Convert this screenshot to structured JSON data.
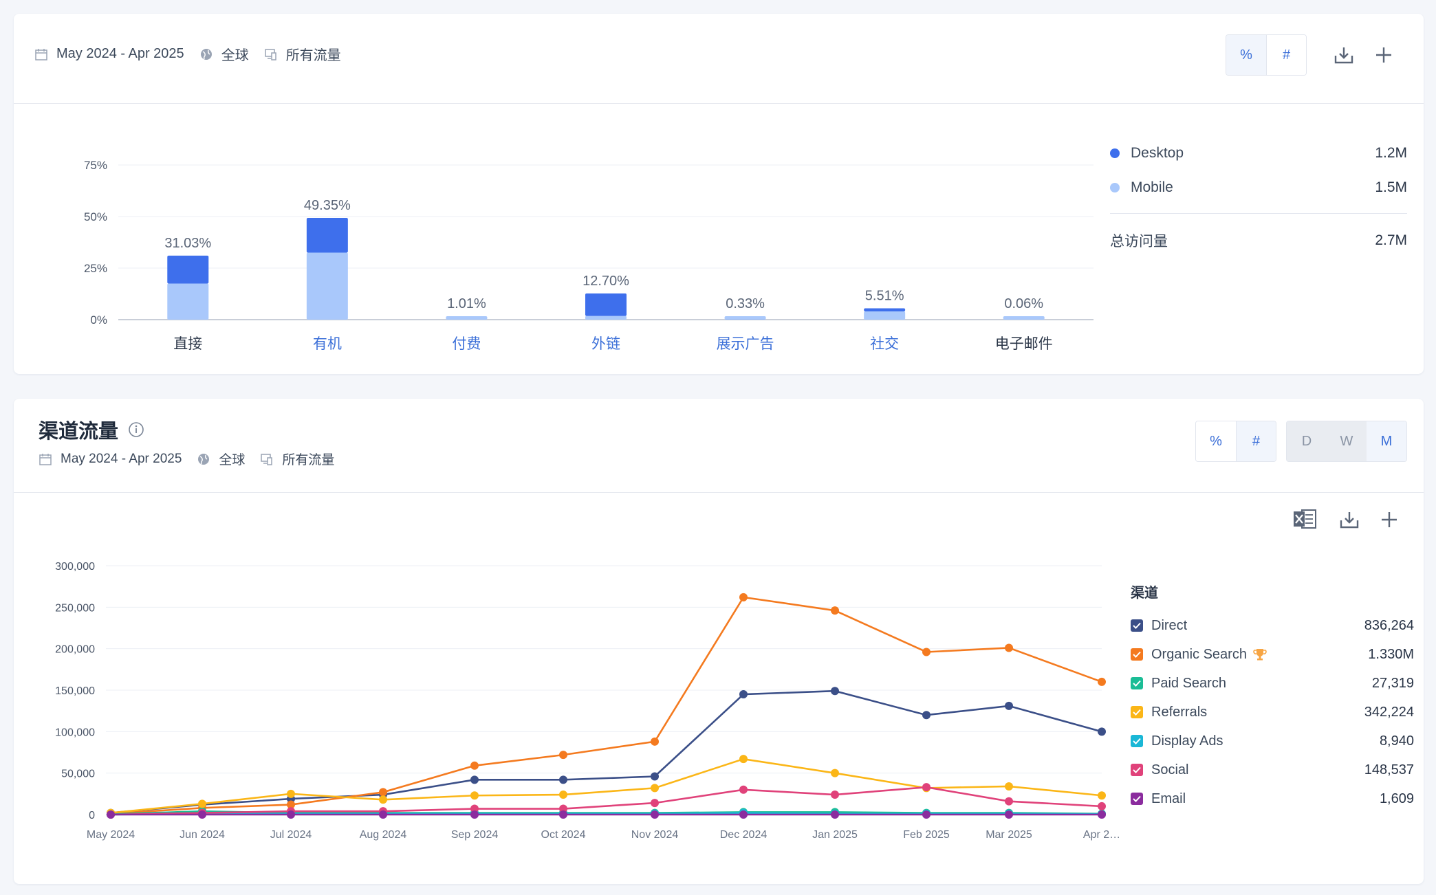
{
  "card1": {
    "date_range": "May 2024 - Apr 2025",
    "region": "全球",
    "traffic": "所有流量",
    "toggle": {
      "percent": "%",
      "number": "#"
    },
    "legend": [
      {
        "name": "Desktop",
        "value": "1.2M",
        "color": "#3e6fec"
      },
      {
        "name": "Mobile",
        "value": "1.5M",
        "color": "#a9c8fb"
      }
    ],
    "total_label": "总访问量",
    "total_value": "2.7M"
  },
  "card2": {
    "title": "渠道流量",
    "date_range": "May 2024 - Apr 2025",
    "region": "全球",
    "traffic": "所有流量",
    "toggle": {
      "percent": "%",
      "number": "#"
    },
    "granularity": {
      "d": "D",
      "w": "W",
      "m": "M"
    },
    "legend_title": "渠道",
    "legend": [
      {
        "name": "Direct",
        "value": "836,264",
        "color": "#3b4f88"
      },
      {
        "name": "Organic Search",
        "value": "1.330M",
        "color": "#f47a1f"
      },
      {
        "name": "Paid Search",
        "value": "27,319",
        "color": "#1bbd96"
      },
      {
        "name": "Referrals",
        "value": "342,224",
        "color": "#fbb617"
      },
      {
        "name": "Display Ads",
        "value": "8,940",
        "color": "#1ab7d6"
      },
      {
        "name": "Social",
        "value": "148,537",
        "color": "#e0427a"
      },
      {
        "name": "Email",
        "value": "1,609",
        "color": "#8b2c9e"
      }
    ]
  },
  "chart_data": [
    {
      "type": "bar",
      "stacked": true,
      "categories": [
        "直接",
        "有机",
        "付费",
        "外链",
        "展示广告",
        "社交",
        "电子邮件"
      ],
      "category_links": [
        false,
        true,
        true,
        true,
        true,
        true,
        false
      ],
      "totals_labels": [
        "31.03%",
        "49.35%",
        "1.01%",
        "12.70%",
        "0.33%",
        "5.51%",
        "0.06%"
      ],
      "series": [
        {
          "name": "Mobile",
          "color": "#a9c8fb",
          "values": [
            17.5,
            32.5,
            1.0,
            1.8,
            0.3,
            4.0,
            0.06
          ]
        },
        {
          "name": "Desktop",
          "color": "#3e6fec",
          "values": [
            13.53,
            16.85,
            0.01,
            10.9,
            0.03,
            1.51,
            0.0
          ]
        }
      ],
      "yticks": [
        "0%",
        "25%",
        "50%",
        "75%"
      ],
      "ylim": [
        0,
        75
      ],
      "grid": true
    },
    {
      "type": "line",
      "x": [
        "May 2024",
        "Jun 2024",
        "Jul 2024",
        "Aug 2024",
        "Sep 2024",
        "Oct 2024",
        "Nov 2024",
        "Dec 2024",
        "Jan 2025",
        "Feb 2025",
        "Mar 2025",
        "Apr 2…"
      ],
      "yticks": [
        "0",
        "50,000",
        "100,000",
        "150,000",
        "200,000",
        "250,000",
        "300,000"
      ],
      "ylim": [
        0,
        300000
      ],
      "grid": true,
      "series": [
        {
          "name": "Direct",
          "color": "#3b4f88",
          "values": [
            2000,
            12000,
            19000,
            24000,
            42000,
            42000,
            46000,
            145000,
            149000,
            120000,
            131000,
            100000
          ]
        },
        {
          "name": "Organic Search",
          "color": "#f47a1f",
          "values": [
            1000,
            8000,
            12000,
            27000,
            59000,
            72000,
            88000,
            262000,
            246000,
            196000,
            201000,
            160000
          ]
        },
        {
          "name": "Paid Search",
          "color": "#1bbd96",
          "values": [
            500,
            4000,
            2000,
            2000,
            2000,
            2000,
            2000,
            3000,
            3000,
            2000,
            2000,
            1000
          ]
        },
        {
          "name": "Referrals",
          "color": "#fbb617",
          "values": [
            2000,
            13000,
            25000,
            18000,
            23000,
            24000,
            32000,
            67000,
            50000,
            32000,
            34000,
            23000
          ]
        },
        {
          "name": "Display Ads",
          "color": "#1ab7d6",
          "values": [
            0,
            1000,
            1000,
            1000,
            1000,
            1000,
            1000,
            2000,
            1000,
            1000,
            1000,
            500
          ]
        },
        {
          "name": "Social",
          "color": "#e0427a",
          "values": [
            0,
            2000,
            4000,
            4000,
            7000,
            7000,
            14000,
            30000,
            24000,
            33000,
            16000,
            10000
          ]
        },
        {
          "name": "Email",
          "color": "#8b2c9e",
          "values": [
            0,
            0,
            0,
            0,
            0,
            0,
            0,
            0,
            0,
            0,
            0,
            0
          ]
        }
      ]
    }
  ]
}
